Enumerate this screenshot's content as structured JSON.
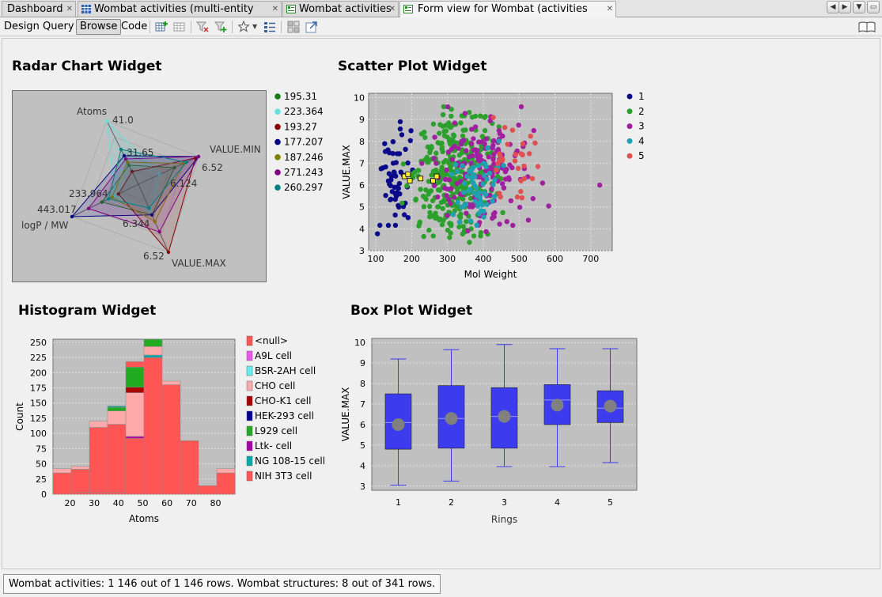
{
  "tabs": [
    {
      "label": "Dashboard",
      "icon": "none",
      "active": false
    },
    {
      "label": "Wombat activities (multi-entity table)",
      "icon": "table-icon",
      "active": false
    },
    {
      "label": "Wombat activities",
      "icon": "form-icon",
      "active": false
    },
    {
      "label": "Form view for Wombat (activities view)",
      "icon": "form-icon",
      "active": true
    }
  ],
  "toolbar": {
    "modes": [
      "Design",
      "Query",
      "Browse",
      "Code"
    ],
    "active_mode": "Browse",
    "icons": [
      "add-row-icon",
      "table-grid-icon",
      "filter-clear-icon",
      "filter-add-icon",
      "star-icon",
      "list-view-icon",
      "layout-icon",
      "export-icon",
      "book-icon"
    ]
  },
  "widgets": {
    "radar": {
      "title": "Radar Chart Widget"
    },
    "scatter": {
      "title": "Scatter Plot Widget"
    },
    "histogram": {
      "title": "Histogram Widget"
    },
    "boxplot": {
      "title": "Box Plot Widget"
    }
  },
  "colors": {
    "plot_bg": "#c0c0c0",
    "box_fill": "#3c3cee",
    "median_dot": "#808080",
    "hist_null": "#ff5555"
  },
  "status": {
    "text": "Wombat activities: 1 146 out of 1 146 rows. Wombat structures: 8 out of 341 rows."
  },
  "chart_data": [
    {
      "type": "radar",
      "title": "Radar Chart Widget",
      "axes": [
        "Atoms",
        "VALUE.MIN",
        "VALUE.MAX",
        "logP / MW"
      ],
      "axis_value_labels": [
        "41.0",
        "31.65",
        "6.52",
        "6.124",
        "6.52",
        "6.344",
        "443.017",
        "233.964"
      ],
      "series": [
        {
          "name": "195.31",
          "color": "#1a7a1a"
        },
        {
          "name": "223.364",
          "color": "#66e0e0"
        },
        {
          "name": "193.27",
          "color": "#8b0000"
        },
        {
          "name": "177.207",
          "color": "#000080"
        },
        {
          "name": "187.246",
          "color": "#808000"
        },
        {
          "name": "271.243",
          "color": "#800080"
        },
        {
          "name": "260.297",
          "color": "#008080"
        }
      ],
      "legend": "right"
    },
    {
      "type": "scatter",
      "title": "Scatter Plot Widget",
      "xlabel": "Mol Weight",
      "ylabel": "VALUE.MAX",
      "xlim": [
        80,
        760
      ],
      "ylim": [
        3,
        10.2
      ],
      "xticks": [
        100,
        200,
        300,
        400,
        500,
        600,
        700
      ],
      "yticks": [
        3,
        4,
        5,
        6,
        7,
        8,
        9,
        10
      ],
      "series": [
        {
          "name": "1",
          "color": "#0a0a8a",
          "x_range": [
            95,
            210
          ],
          "y_range": [
            3.2,
            9.1
          ]
        },
        {
          "name": "2",
          "color": "#2ca02c",
          "x_range": [
            150,
            480
          ],
          "y_range": [
            3.2,
            9.7
          ]
        },
        {
          "name": "3",
          "color": "#a020a0",
          "x_range": [
            200,
            600
          ],
          "y_range": [
            3.6,
            9.8
          ]
        },
        {
          "name": "4",
          "color": "#20a0b0",
          "x_range": [
            300,
            470
          ],
          "y_range": [
            3.8,
            8.2
          ]
        },
        {
          "name": "5",
          "color": "#e05050",
          "x_range": [
            380,
            600
          ],
          "y_range": [
            5.0,
            9.5
          ]
        }
      ],
      "highlighted": [
        [
          180,
          6.4
        ],
        [
          190,
          6.5
        ],
        [
          195,
          6.2
        ],
        [
          225,
          6.3
        ],
        [
          260,
          6.2
        ],
        [
          270,
          6.4
        ]
      ],
      "legend": "right"
    },
    {
      "type": "bar",
      "title": "Histogram Widget",
      "xlabel": "Atoms",
      "ylabel": "Count",
      "xlim": [
        13,
        88
      ],
      "ylim": [
        0,
        255
      ],
      "xticks": [
        20,
        30,
        40,
        50,
        60,
        70,
        80
      ],
      "yticks": [
        0,
        25,
        50,
        75,
        100,
        125,
        150,
        175,
        200,
        225,
        250
      ],
      "bins": [
        {
          "x0": 13,
          "x1": 23,
          "total": 42,
          "segments": {
            "NIH 3T3 cell": 35,
            "CHO cell": 7
          }
        },
        {
          "x0": 23,
          "x1": 33,
          "total": 46,
          "segments": {
            "<null>": 3,
            "NIH 3T3 cell": 38,
            "CHO cell": 5
          }
        },
        {
          "x0": 33,
          "x1": 43,
          "total": 120,
          "segments": {
            "<null>": 3,
            "NIH 3T3 cell": 107,
            "CHO cell": 10
          }
        },
        {
          "x0": 43,
          "x1": 53,
          "total": 145,
          "segments": {
            "<null>": 3,
            "NIH 3T3 cell": 112,
            "CHO cell": 22,
            "L929 cell": 6,
            "NG 108-15 cell": 2
          }
        },
        {
          "x0": 53,
          "x1": 63,
          "total": 218,
          "segments": {
            "NIH 3T3 cell": 92,
            "Ltk- cell": 3,
            "CHO cell": 72,
            "CHO-K1 cell": 9,
            "L929 cell": 33,
            "<null>": 9
          }
        },
        {
          "x0": 63,
          "x1": 73,
          "total": 258,
          "segments": {
            "NIH 3T3 cell": 225,
            "NG 108-15 cell": 4,
            "CHO cell": 14,
            "L929 cell": 15
          }
        },
        {
          "x0": 73,
          "x1": 83,
          "total": 186,
          "segments": {
            "NIH 3T3 cell": 180,
            "CHO cell": 6
          }
        },
        {
          "x0": 83,
          "x1": 93,
          "total": 88,
          "segments": {
            "NIH 3T3 cell": 88
          }
        },
        {
          "x0": 93,
          "x1": 103,
          "total": 14,
          "segments": {
            "NIH 3T3 cell": 14
          }
        },
        {
          "x0": 103,
          "x1": 113,
          "total": 42,
          "segments": {
            "NIH 3T3 cell": 35,
            "CHO cell": 7
          }
        }
      ],
      "legend_entries": [
        {
          "name": "<null>",
          "color": "#ff5555"
        },
        {
          "name": "A9L cell",
          "color": "#ee55ee"
        },
        {
          "name": "BSR-2AH cell",
          "color": "#66eeee"
        },
        {
          "name": "CHO cell",
          "color": "#ffaaaa"
        },
        {
          "name": "CHO-K1 cell",
          "color": "#aa0000"
        },
        {
          "name": "HEK-293 cell",
          "color": "#000099"
        },
        {
          "name": "L929 cell",
          "color": "#22aa22"
        },
        {
          "name": "Ltk- cell",
          "color": "#aa00aa"
        },
        {
          "name": "NG 108-15 cell",
          "color": "#00aaaa"
        },
        {
          "name": "NIH 3T3 cell",
          "color": "#ff5555"
        }
      ],
      "legend": "right"
    },
    {
      "type": "box",
      "title": "Box Plot Widget",
      "xlabel": "Rings",
      "ylabel": "VALUE.MAX",
      "ylim": [
        2.8,
        10.2
      ],
      "yticks": [
        3,
        4,
        5,
        6,
        7,
        8,
        9,
        10
      ],
      "categories": [
        "1",
        "2",
        "3",
        "4",
        "5"
      ],
      "boxes": [
        {
          "min": 3.05,
          "q1": 4.8,
          "median": 6.1,
          "q3": 7.5,
          "max": 9.2,
          "mean": 6.0
        },
        {
          "min": 3.25,
          "q1": 4.85,
          "median": 6.3,
          "q3": 7.9,
          "max": 9.65,
          "mean": 6.3
        },
        {
          "min": 3.95,
          "q1": 4.85,
          "median": 6.4,
          "q3": 7.8,
          "max": 9.9,
          "mean": 6.4
        },
        {
          "min": 3.95,
          "q1": 6.0,
          "median": 7.2,
          "q3": 7.95,
          "max": 9.7,
          "mean": 6.95
        },
        {
          "min": 4.15,
          "q1": 6.1,
          "median": 6.8,
          "q3": 7.65,
          "max": 9.7,
          "mean": 6.9
        }
      ]
    }
  ]
}
